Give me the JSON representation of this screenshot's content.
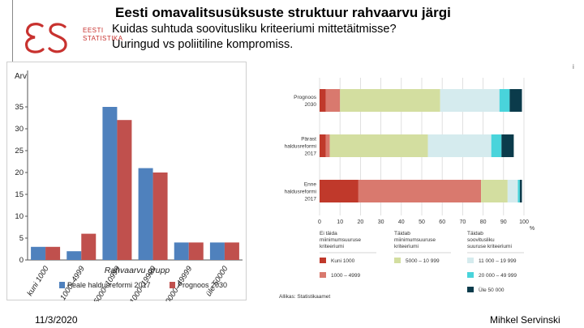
{
  "slide": {
    "title": "Eesti omavalitsusüksuste struktuur rahvaarvu järgi",
    "subtitle_line1": "Kuidas suhtuda soovitusliku kriteeriumi mittetäitmisse?",
    "subtitle_line2": "Uuringud vs poliitiline kompromiss.",
    "date": "11/3/2020",
    "author": "Mihkel Servinski",
    "corner_mark": "i",
    "logo_line1": "EESTI",
    "logo_line2": "STATISTIKA"
  },
  "colors": {
    "logo": "#c8322f",
    "bar_blue": "#4f81bd",
    "bar_red": "#c0504d",
    "cat1": "#c0392b",
    "cat2": "#d9796e",
    "cat3": "#d3dea0",
    "cat4": "#d5ebee",
    "cat5": "#49d4db",
    "cat6": "#0b3b4b"
  },
  "chart_data": [
    {
      "type": "bar",
      "ylabel": "Arv",
      "xlabel": "Rahvaarvu grupp",
      "categories": [
        "kuni 1000",
        "1000–4999",
        "5000–10999",
        "11000–19999",
        "20000–49999",
        "üle 50000"
      ],
      "series": [
        {
          "name": "Peale haldusreformi 2017",
          "values": [
            3,
            2,
            35,
            21,
            4,
            4
          ]
        },
        {
          "name": "Prognoos 2030",
          "values": [
            3,
            6,
            32,
            20,
            4,
            4
          ]
        }
      ],
      "ylim": [
        0,
        40
      ],
      "yticks": [
        0,
        5,
        10,
        15,
        20,
        25,
        30,
        35
      ],
      "legend": "bottom",
      "grid": false
    },
    {
      "type": "bar",
      "orientation": "horizontal",
      "stacked": true,
      "categories": [
        {
          "line1": "Prognoos",
          "line2": "2030"
        },
        {
          "line1": "Pärast",
          "line2": "haldusreformi",
          "line3": "2017"
        },
        {
          "line1": "Enne",
          "line2": "haldusreformi",
          "line3": "2017"
        }
      ],
      "series": [
        {
          "name": "Kuni 1000",
          "values": [
            3,
            3,
            19
          ]
        },
        {
          "name": "1000 – 4999",
          "values": [
            7,
            2,
            60
          ]
        },
        {
          "name": "5000 – 10 999",
          "values": [
            49,
            48,
            13
          ]
        },
        {
          "name": "11 000 – 19 999",
          "values": [
            29,
            31,
            5
          ]
        },
        {
          "name": "20 000 – 49 999",
          "values": [
            5,
            5,
            1
          ]
        },
        {
          "name": "Üle 50 000",
          "values": [
            6,
            6,
            1
          ]
        }
      ],
      "xlim": [
        0,
        100
      ],
      "xticks": [
        "0",
        "10",
        "20",
        "30",
        "40",
        "50",
        "60",
        "70",
        "80",
        "90",
        "100"
      ],
      "xunit": "%",
      "legend_groups": [
        {
          "line1": "Ei täida",
          "line2": "miinimumsuuruse",
          "line3": "kriteeriumi"
        },
        {
          "line1": "Täidab",
          "line2": "miinimumsuuruse",
          "line3": "kriteeriumi"
        },
        {
          "line1": "Täidab",
          "line2": "soovitusliku",
          "line3": "suuruse kriteeriumi"
        }
      ],
      "source": "Allikas: Statistikaamet",
      "grid": true
    }
  ]
}
